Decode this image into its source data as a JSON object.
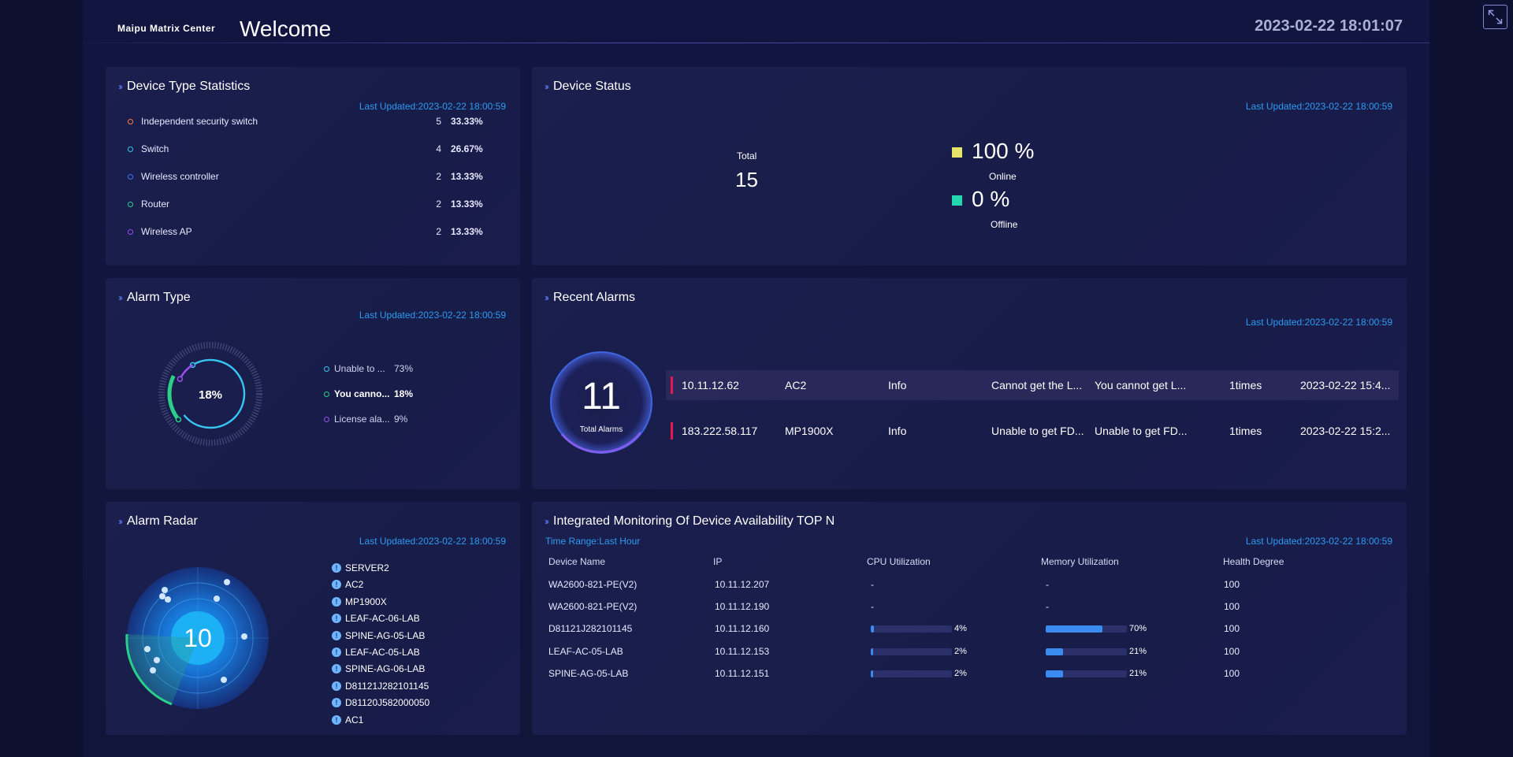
{
  "header": {
    "brand": "Maipu Matrix Center",
    "title": "Welcome",
    "datetime": "2023-02-22 18:01:07"
  },
  "updated_label": "Last Updated:2023-02-22 18:00:59",
  "device_type": {
    "title": "Device Type Statistics",
    "items": [
      {
        "name": "Independent security switch",
        "count": "5",
        "pct": "33.33%",
        "color": "#ff7a3c"
      },
      {
        "name": "Switch",
        "count": "4",
        "pct": "26.67%",
        "color": "#38c4f0"
      },
      {
        "name": "Wireless controller",
        "count": "2",
        "pct": "13.33%",
        "color": "#3a78f0"
      },
      {
        "name": "Router",
        "count": "2",
        "pct": "13.33%",
        "color": "#2ad08a"
      },
      {
        "name": "Wireless AP",
        "count": "2",
        "pct": "13.33%",
        "color": "#9a4ff0"
      }
    ]
  },
  "device_status": {
    "title": "Device Status",
    "total_label": "Total",
    "total": "15",
    "online_value": "100 %",
    "online_label": "Online",
    "online_color": "#e6e36a",
    "offline_value": "0 %",
    "offline_label": "Offline",
    "offline_color": "#22d6b0"
  },
  "alarm_type": {
    "title": "Alarm Type",
    "center": "18%",
    "items": [
      {
        "name": "Unable to ...",
        "pct": "73%",
        "value": 73,
        "color": "#38c4f0"
      },
      {
        "name": "You canno...",
        "pct": "18%",
        "value": 18,
        "color": "#2ad08a"
      },
      {
        "name": "License ala...",
        "pct": "9%",
        "value": 9,
        "color": "#9a4ff0"
      }
    ]
  },
  "recent_alarms": {
    "title": "Recent Alarms",
    "total": "11",
    "total_label": "Total Alarms",
    "rows": [
      {
        "ip": "10.11.12.62",
        "device": "AC2",
        "level": "Info",
        "cause": "Cannot get the L...",
        "detail": "You cannot get L...",
        "times": "1times",
        "time": "2023-02-22 15:4..."
      },
      {
        "ip": "183.222.58.117",
        "device": "MP1900X",
        "level": "Info",
        "cause": "Unable to get FD...",
        "detail": "Unable to get FD...",
        "times": "1times",
        "time": "2023-02-22 15:2..."
      }
    ]
  },
  "alarm_radar": {
    "title": "Alarm Radar",
    "count": "10",
    "badge": "!",
    "items": [
      "SERVER2",
      "AC2",
      "MP1900X",
      "LEAF-AC-06-LAB",
      "SPINE-AG-05-LAB",
      "LEAF-AC-05-LAB",
      "SPINE-AG-06-LAB",
      "D81121J282101145",
      "D81120J582000050",
      "AC1"
    ]
  },
  "monitoring": {
    "title": "Integrated Monitoring Of Device Availability TOP N",
    "time_range": "Time Range:Last Hour",
    "headers": [
      "Device Name",
      "IP",
      "CPU Utilization",
      "Memory Utilization",
      "Health Degree"
    ],
    "rows": [
      {
        "name": "WA2600-821-PE(V2)",
        "ip": "10.11.12.207",
        "cpu": "-",
        "cpu_value": null,
        "mem": "-",
        "mem_value": null,
        "health": "100"
      },
      {
        "name": "WA2600-821-PE(V2)",
        "ip": "10.11.12.190",
        "cpu": "-",
        "cpu_value": null,
        "mem": "-",
        "mem_value": null,
        "health": "100"
      },
      {
        "name": "D81121J282101145",
        "ip": "10.11.12.160",
        "cpu": "4%",
        "cpu_value": 4,
        "mem": "70%",
        "mem_value": 70,
        "health": "100"
      },
      {
        "name": "LEAF-AC-05-LAB",
        "ip": "10.11.12.153",
        "cpu": "2%",
        "cpu_value": 2,
        "mem": "21%",
        "mem_value": 21,
        "health": "100"
      },
      {
        "name": "SPINE-AG-05-LAB",
        "ip": "10.11.12.151",
        "cpu": "2%",
        "cpu_value": 2,
        "mem": "21%",
        "mem_value": 21,
        "health": "100"
      }
    ]
  }
}
